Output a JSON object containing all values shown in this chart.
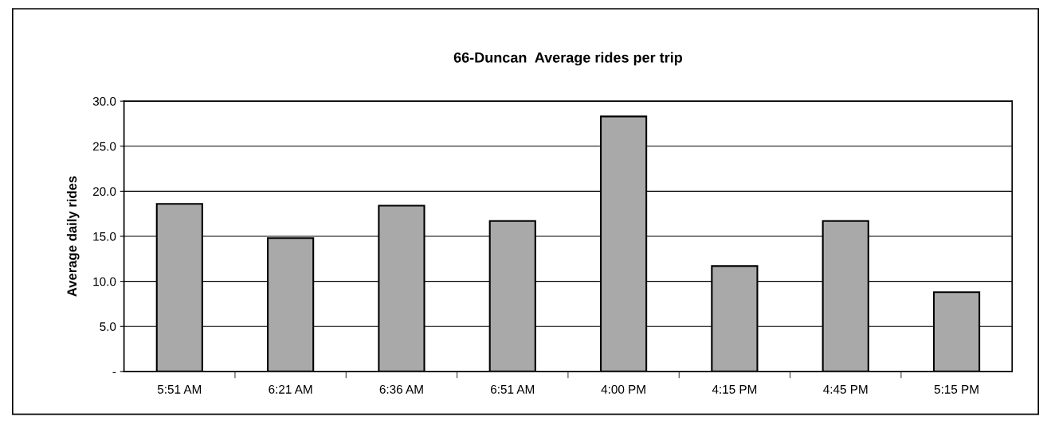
{
  "chart_data": {
    "type": "bar",
    "title": "66-Duncan  Average rides per trip",
    "ylabel": "Average daily rides",
    "categories": [
      "5:51 AM",
      "6:21 AM",
      "6:36 AM",
      "6:51 AM",
      "4:00 PM",
      "4:15 PM",
      "4:45 PM",
      "5:15 PM"
    ],
    "values": [
      18.6,
      14.8,
      18.4,
      16.7,
      28.3,
      11.7,
      16.7,
      8.8
    ],
    "color": "#a9a9a9",
    "ylim": [
      0,
      30
    ],
    "yticks": [
      {
        "value": 0,
        "label": "-"
      },
      {
        "value": 5,
        "label": "5.0"
      },
      {
        "value": 10,
        "label": "10.0"
      },
      {
        "value": 15,
        "label": "15.0"
      },
      {
        "value": 20,
        "label": "20.0"
      },
      {
        "value": 25,
        "label": "25.0"
      },
      {
        "value": 30,
        "label": "30.0"
      }
    ],
    "grid": "y"
  }
}
